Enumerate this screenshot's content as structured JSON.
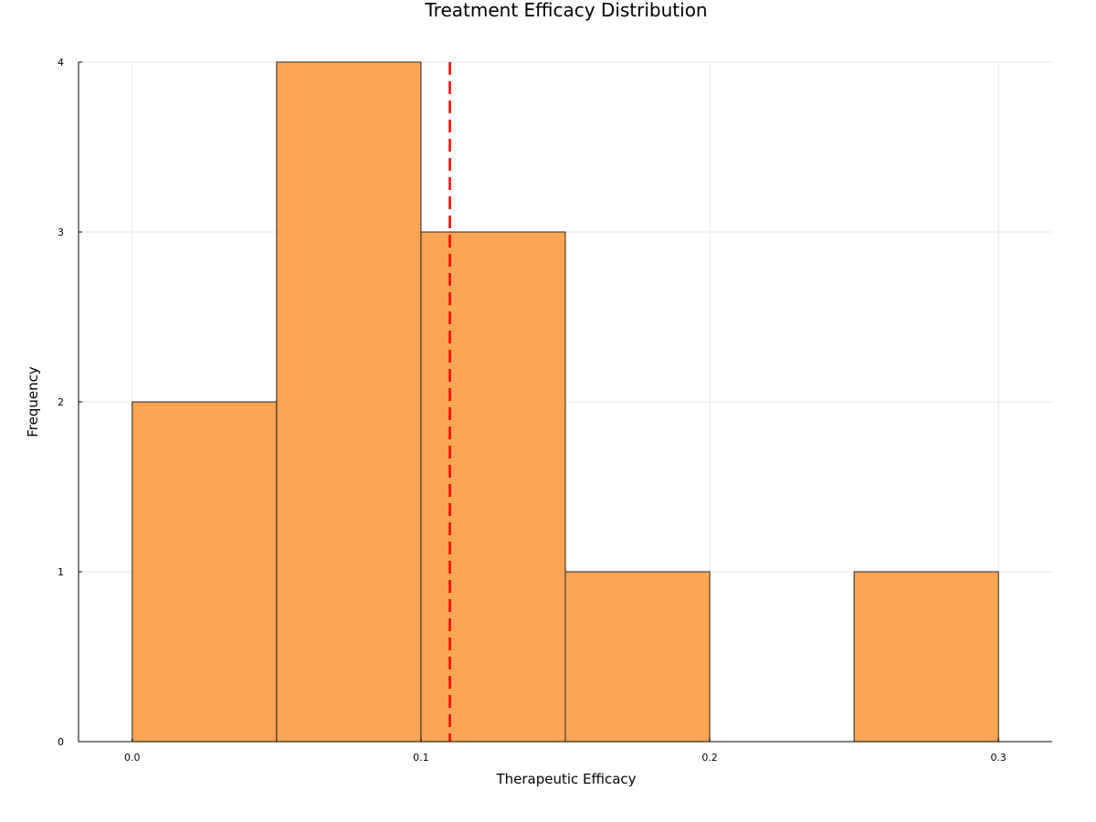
{
  "chart_data": {
    "type": "bar",
    "title": "Treatment Efficacy Distribution",
    "xlabel": "Therapeutic Efficacy",
    "ylabel": "Frequency",
    "bins": [
      {
        "x0": 0.0,
        "x1": 0.05,
        "count": 2
      },
      {
        "x0": 0.05,
        "x1": 0.1,
        "count": 4
      },
      {
        "x0": 0.1,
        "x1": 0.15,
        "count": 3
      },
      {
        "x0": 0.15,
        "x1": 0.2,
        "count": 1
      },
      {
        "x0": 0.2,
        "x1": 0.25,
        "count": 0
      },
      {
        "x0": 0.25,
        "x1": 0.3,
        "count": 1
      }
    ],
    "reference_line": {
      "x": 0.11,
      "style": "dashed",
      "color": "#ff0000"
    },
    "xlim": [
      -0.0186,
      0.3186
    ],
    "ylim": [
      0,
      4
    ],
    "xticks": [
      0.0,
      0.1,
      0.2,
      0.3
    ],
    "xtick_labels": [
      "0.0",
      "0.1",
      "0.2",
      "0.3"
    ],
    "yticks": [
      0,
      1,
      2,
      3,
      4
    ],
    "ytick_labels": [
      "0",
      "1",
      "2",
      "3",
      "4"
    ],
    "grid": true,
    "bar_color": "#ffa556"
  }
}
